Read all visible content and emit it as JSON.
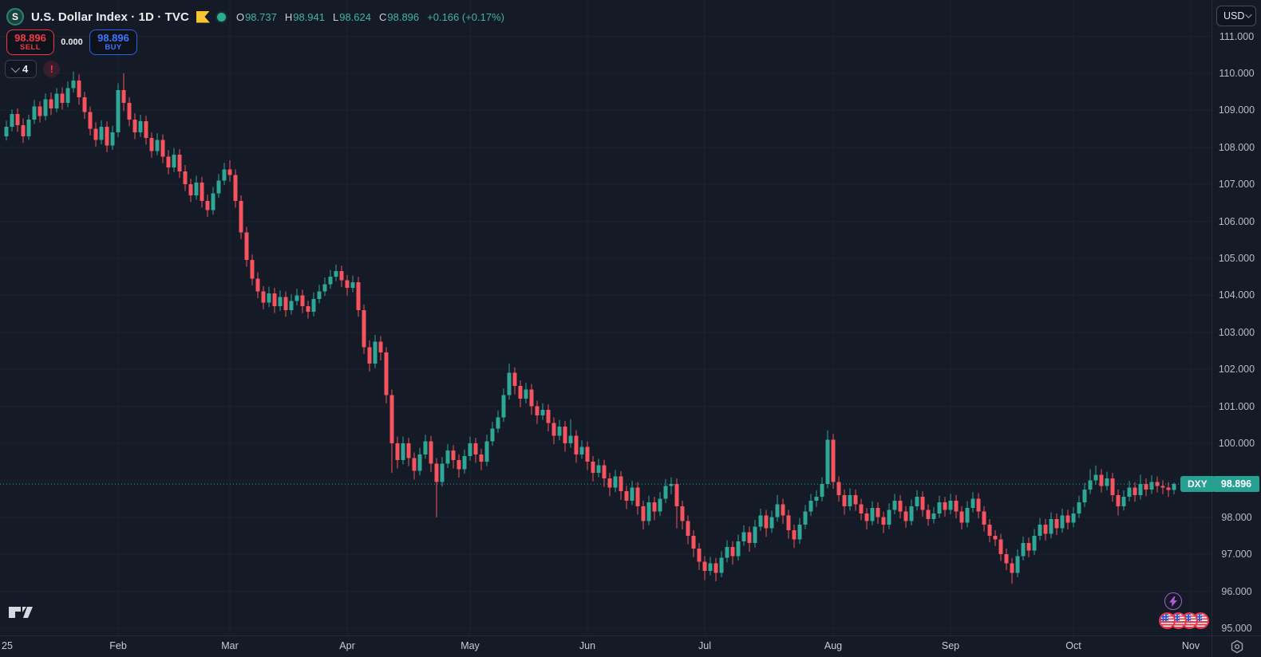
{
  "header": {
    "symbol_badge": "S",
    "title": "U.S. Dollar Index",
    "separator": "·",
    "timeframe": "1D",
    "exchange": "TVC",
    "ohlc": {
      "o_label": "O",
      "o": "98.737",
      "h_label": "H",
      "h": "98.941",
      "l_label": "L",
      "l": "98.624",
      "c_label": "C",
      "c": "98.896",
      "change": "+0.166 (+0.17%)"
    }
  },
  "trade_panel": {
    "sell_price": "98.896",
    "sell_label": "SELL",
    "spread": "0.000",
    "buy_price": "98.896",
    "buy_label": "BUY"
  },
  "toolbar": {
    "collapse_count": "4",
    "warning": "!"
  },
  "price_axis": {
    "currency": "USD",
    "symbol_tag": "DXY",
    "last_price": "98.896",
    "ticks": [
      "111.000",
      "110.000",
      "109.000",
      "108.000",
      "107.000",
      "106.000",
      "105.000",
      "104.000",
      "103.000",
      "102.000",
      "101.000",
      "100.000",
      "99.000",
      "98.000",
      "97.000",
      "96.000",
      "95.000"
    ]
  },
  "colors": {
    "up": "#2ea796",
    "down": "#f5545f",
    "label_teal": "#26a091",
    "grid": "rgba(170,180,200,0.05)",
    "dotted_line": "#2ea796"
  },
  "chart_data": {
    "type": "candlestick",
    "title": "U.S. Dollar Index (DXY) · 1D · TVC",
    "symbol": "DXY",
    "timeframe": "1D",
    "ylim": [
      95,
      111
    ],
    "last_close": 98.896,
    "months": [
      {
        "label": "25",
        "i": 0
      },
      {
        "label": "Feb",
        "i": 20
      },
      {
        "label": "Mar",
        "i": 40
      },
      {
        "label": "Apr",
        "i": 61
      },
      {
        "label": "May",
        "i": 83
      },
      {
        "label": "Jun",
        "i": 104
      },
      {
        "label": "Jul",
        "i": 125
      },
      {
        "label": "Aug",
        "i": 148
      },
      {
        "label": "Sep",
        "i": 169
      },
      {
        "label": "Oct",
        "i": 191
      },
      {
        "label": "Nov",
        "i": 212
      }
    ],
    "candles": [
      [
        108.3,
        108.72,
        108.18,
        108.55
      ],
      [
        108.55,
        109.02,
        108.43,
        108.9
      ],
      [
        108.9,
        109.05,
        108.42,
        108.6
      ],
      [
        108.6,
        108.78,
        108.12,
        108.3
      ],
      [
        108.3,
        108.88,
        108.2,
        108.75
      ],
      [
        108.75,
        109.28,
        108.63,
        109.1
      ],
      [
        109.1,
        109.24,
        108.67,
        108.85
      ],
      [
        108.85,
        109.45,
        108.73,
        109.3
      ],
      [
        109.3,
        109.48,
        108.87,
        109.05
      ],
      [
        109.05,
        109.6,
        108.95,
        109.45
      ],
      [
        109.45,
        109.62,
        109.02,
        109.2
      ],
      [
        109.2,
        109.78,
        109.08,
        109.6
      ],
      [
        109.6,
        110.05,
        109.48,
        109.8
      ],
      [
        109.8,
        109.97,
        109.15,
        109.35
      ],
      [
        109.35,
        109.5,
        108.77,
        108.95
      ],
      [
        108.95,
        109.1,
        108.32,
        108.5
      ],
      [
        108.5,
        108.68,
        108.02,
        108.2
      ],
      [
        108.2,
        108.73,
        108.08,
        108.55
      ],
      [
        108.55,
        108.7,
        107.87,
        108.05
      ],
      [
        108.05,
        108.58,
        107.93,
        108.4
      ],
      [
        108.4,
        109.73,
        108.28,
        109.55
      ],
      [
        109.55,
        110.0,
        108.98,
        109.2
      ],
      [
        109.2,
        109.35,
        108.57,
        108.75
      ],
      [
        108.75,
        108.92,
        108.22,
        108.4
      ],
      [
        108.4,
        108.88,
        108.28,
        108.7
      ],
      [
        108.7,
        108.85,
        108.07,
        108.25
      ],
      [
        108.25,
        108.4,
        107.72,
        107.9
      ],
      [
        107.9,
        108.38,
        107.78,
        108.2
      ],
      [
        108.2,
        108.35,
        107.57,
        107.75
      ],
      [
        107.75,
        107.92,
        107.27,
        107.45
      ],
      [
        107.45,
        107.98,
        107.33,
        107.8
      ],
      [
        107.8,
        107.95,
        107.17,
        107.35
      ],
      [
        107.35,
        107.52,
        106.82,
        107.0
      ],
      [
        107.0,
        107.15,
        106.52,
        106.7
      ],
      [
        106.7,
        107.23,
        106.58,
        107.05
      ],
      [
        107.05,
        107.2,
        106.37,
        106.55
      ],
      [
        106.55,
        106.72,
        106.12,
        106.3
      ],
      [
        106.3,
        106.93,
        106.18,
        106.75
      ],
      [
        106.75,
        107.28,
        106.63,
        107.1
      ],
      [
        107.1,
        107.58,
        106.98,
        107.4
      ],
      [
        107.4,
        107.65,
        107.07,
        107.25
      ],
      [
        107.25,
        107.4,
        106.37,
        106.55
      ],
      [
        106.55,
        106.7,
        105.52,
        105.7
      ],
      [
        105.7,
        105.85,
        104.77,
        104.95
      ],
      [
        104.95,
        105.1,
        104.27,
        104.45
      ],
      [
        104.45,
        104.62,
        103.92,
        104.1
      ],
      [
        104.1,
        104.25,
        103.62,
        103.8
      ],
      [
        103.8,
        104.23,
        103.68,
        104.05
      ],
      [
        104.05,
        104.2,
        103.52,
        103.7
      ],
      [
        103.7,
        104.13,
        103.58,
        103.95
      ],
      [
        103.95,
        104.1,
        103.42,
        103.6
      ],
      [
        103.6,
        104.03,
        103.48,
        103.85
      ],
      [
        103.85,
        104.18,
        103.73,
        104.0
      ],
      [
        104.0,
        104.15,
        103.52,
        103.7
      ],
      [
        103.7,
        103.85,
        103.37,
        103.55
      ],
      [
        103.55,
        104.08,
        103.43,
        103.9
      ],
      [
        103.9,
        104.28,
        103.78,
        104.1
      ],
      [
        104.1,
        104.48,
        103.98,
        104.3
      ],
      [
        104.3,
        104.68,
        104.18,
        104.5
      ],
      [
        104.5,
        104.83,
        104.38,
        104.65
      ],
      [
        104.65,
        104.8,
        104.22,
        104.4
      ],
      [
        104.4,
        104.55,
        103.99,
        104.2
      ],
      [
        104.2,
        104.53,
        104.08,
        104.35
      ],
      [
        104.35,
        104.5,
        103.42,
        103.6
      ],
      [
        103.6,
        103.75,
        102.42,
        102.6
      ],
      [
        102.6,
        102.78,
        101.94,
        102.15
      ],
      [
        102.15,
        102.93,
        102.03,
        102.75
      ],
      [
        102.75,
        102.9,
        102.24,
        102.45
      ],
      [
        102.45,
        102.6,
        101.08,
        101.3
      ],
      [
        101.3,
        101.45,
        99.2,
        100.0
      ],
      [
        100.0,
        100.18,
        99.32,
        99.55
      ],
      [
        99.55,
        100.18,
        99.43,
        100.0
      ],
      [
        100.0,
        100.15,
        99.38,
        99.6
      ],
      [
        99.6,
        99.75,
        99.02,
        99.25
      ],
      [
        99.25,
        99.88,
        99.13,
        99.7
      ],
      [
        99.7,
        100.23,
        99.58,
        100.05
      ],
      [
        100.05,
        100.2,
        99.22,
        99.45
      ],
      [
        99.45,
        99.6,
        98.0,
        98.95
      ],
      [
        98.95,
        99.63,
        98.83,
        99.45
      ],
      [
        99.45,
        99.98,
        99.33,
        99.8
      ],
      [
        99.8,
        99.95,
        99.32,
        99.55
      ],
      [
        99.55,
        99.7,
        99.07,
        99.3
      ],
      [
        99.3,
        99.83,
        99.18,
        99.65
      ],
      [
        99.65,
        100.18,
        99.53,
        100.0
      ],
      [
        100.0,
        100.15,
        99.47,
        99.7
      ],
      [
        99.7,
        99.85,
        99.27,
        99.5
      ],
      [
        99.5,
        100.23,
        99.38,
        100.05
      ],
      [
        100.05,
        100.58,
        99.93,
        100.4
      ],
      [
        100.4,
        100.88,
        100.28,
        100.7
      ],
      [
        100.7,
        101.48,
        100.58,
        101.3
      ],
      [
        101.3,
        102.15,
        101.18,
        101.9
      ],
      [
        101.9,
        102.05,
        101.32,
        101.55
      ],
      [
        101.55,
        101.7,
        100.97,
        101.2
      ],
      [
        101.2,
        101.63,
        101.08,
        101.45
      ],
      [
        101.45,
        101.6,
        100.77,
        101.0
      ],
      [
        101.0,
        101.15,
        100.52,
        100.75
      ],
      [
        100.75,
        101.08,
        100.63,
        100.9
      ],
      [
        100.9,
        101.05,
        100.32,
        100.55
      ],
      [
        100.55,
        100.7,
        99.97,
        100.2
      ],
      [
        100.2,
        100.63,
        100.08,
        100.45
      ],
      [
        100.45,
        100.6,
        99.77,
        100.0
      ],
      [
        100.0,
        100.65,
        99.88,
        100.2
      ],
      [
        100.2,
        100.35,
        99.47,
        99.7
      ],
      [
        99.7,
        100.08,
        99.58,
        99.9
      ],
      [
        99.9,
        100.05,
        99.27,
        99.5
      ],
      [
        99.5,
        99.65,
        98.97,
        99.2
      ],
      [
        99.2,
        99.58,
        99.08,
        99.4
      ],
      [
        99.4,
        99.55,
        98.82,
        99.05
      ],
      [
        99.05,
        99.2,
        98.57,
        98.8
      ],
      [
        98.8,
        99.28,
        98.68,
        99.1
      ],
      [
        99.1,
        99.25,
        98.47,
        98.7
      ],
      [
        98.7,
        98.85,
        98.22,
        98.45
      ],
      [
        98.45,
        98.98,
        98.33,
        98.8
      ],
      [
        98.8,
        98.95,
        98.07,
        98.3
      ],
      [
        98.3,
        98.45,
        97.67,
        97.9
      ],
      [
        97.9,
        98.58,
        97.78,
        98.4
      ],
      [
        98.4,
        98.55,
        97.92,
        98.15
      ],
      [
        98.15,
        98.68,
        98.03,
        98.5
      ],
      [
        98.5,
        99.03,
        98.38,
        98.85
      ],
      [
        98.85,
        99.08,
        98.62,
        98.9
      ],
      [
        98.9,
        99.05,
        97.7,
        98.3
      ],
      [
        98.3,
        98.45,
        97.67,
        97.9
      ],
      [
        97.9,
        98.05,
        97.27,
        97.5
      ],
      [
        97.5,
        97.65,
        96.92,
        97.15
      ],
      [
        97.15,
        97.3,
        96.57,
        96.8
      ],
      [
        96.8,
        96.95,
        96.3,
        96.55
      ],
      [
        96.55,
        96.93,
        96.43,
        96.75
      ],
      [
        96.75,
        96.9,
        96.27,
        96.5
      ],
      [
        96.5,
        97.08,
        96.38,
        96.9
      ],
      [
        96.9,
        97.38,
        96.78,
        97.2
      ],
      [
        97.2,
        97.35,
        96.72,
        96.95
      ],
      [
        96.95,
        97.53,
        96.83,
        97.35
      ],
      [
        97.35,
        97.78,
        97.23,
        97.6
      ],
      [
        97.6,
        97.75,
        97.07,
        97.3
      ],
      [
        97.3,
        97.93,
        97.18,
        97.75
      ],
      [
        97.75,
        98.23,
        97.63,
        98.05
      ],
      [
        98.05,
        98.2,
        97.47,
        97.7
      ],
      [
        97.7,
        98.18,
        97.58,
        98.0
      ],
      [
        98.0,
        98.6,
        97.88,
        98.35
      ],
      [
        98.35,
        98.5,
        97.82,
        98.05
      ],
      [
        98.05,
        98.2,
        97.42,
        97.65
      ],
      [
        97.65,
        97.8,
        97.17,
        97.4
      ],
      [
        97.4,
        97.98,
        97.28,
        97.8
      ],
      [
        97.8,
        98.33,
        97.68,
        98.15
      ],
      [
        98.15,
        98.63,
        98.03,
        98.45
      ],
      [
        98.45,
        98.73,
        98.28,
        98.55
      ],
      [
        98.55,
        99.08,
        98.43,
        98.9
      ],
      [
        98.9,
        100.35,
        98.78,
        100.1
      ],
      [
        100.1,
        100.25,
        98.77,
        98.95
      ],
      [
        98.95,
        99.1,
        98.42,
        98.6
      ],
      [
        98.6,
        98.75,
        98.07,
        98.3
      ],
      [
        98.3,
        98.78,
        98.18,
        98.6
      ],
      [
        98.6,
        98.75,
        98.17,
        98.35
      ],
      [
        98.35,
        98.5,
        97.92,
        98.1
      ],
      [
        98.1,
        98.25,
        97.67,
        97.9
      ],
      [
        97.9,
        98.43,
        97.78,
        98.25
      ],
      [
        98.25,
        98.4,
        97.82,
        98.0
      ],
      [
        98.0,
        98.15,
        97.57,
        97.8
      ],
      [
        97.8,
        98.38,
        97.68,
        98.2
      ],
      [
        98.2,
        98.63,
        98.08,
        98.45
      ],
      [
        98.45,
        98.6,
        97.97,
        98.15
      ],
      [
        98.15,
        98.3,
        97.72,
        97.9
      ],
      [
        97.9,
        98.48,
        97.78,
        98.3
      ],
      [
        98.3,
        98.73,
        98.18,
        98.55
      ],
      [
        98.55,
        98.7,
        98.02,
        98.2
      ],
      [
        98.2,
        98.35,
        97.77,
        97.95
      ],
      [
        97.95,
        98.28,
        97.83,
        98.1
      ],
      [
        98.1,
        98.58,
        97.98,
        98.4
      ],
      [
        98.4,
        98.55,
        98.02,
        98.2
      ],
      [
        98.2,
        98.63,
        98.08,
        98.45
      ],
      [
        98.45,
        98.6,
        97.97,
        98.15
      ],
      [
        98.15,
        98.3,
        97.67,
        97.85
      ],
      [
        97.85,
        98.43,
        97.73,
        98.25
      ],
      [
        98.25,
        98.68,
        98.13,
        98.5
      ],
      [
        98.5,
        98.65,
        97.97,
        98.15
      ],
      [
        98.15,
        98.3,
        97.62,
        97.8
      ],
      [
        97.8,
        97.95,
        97.32,
        97.5
      ],
      [
        97.5,
        97.65,
        97.22,
        97.4
      ],
      [
        97.4,
        97.55,
        96.82,
        97.0
      ],
      [
        97.0,
        97.15,
        96.57,
        96.75
      ],
      [
        96.75,
        96.9,
        96.2,
        96.5
      ],
      [
        96.5,
        97.13,
        96.38,
        96.95
      ],
      [
        96.95,
        97.48,
        96.83,
        97.3
      ],
      [
        97.3,
        97.45,
        96.92,
        97.1
      ],
      [
        97.1,
        97.68,
        96.98,
        97.5
      ],
      [
        97.5,
        97.98,
        97.38,
        97.8
      ],
      [
        97.8,
        97.95,
        97.37,
        97.55
      ],
      [
        97.55,
        98.13,
        97.43,
        97.95
      ],
      [
        97.95,
        98.1,
        97.52,
        97.7
      ],
      [
        97.7,
        98.23,
        97.58,
        98.05
      ],
      [
        98.05,
        98.2,
        97.67,
        97.85
      ],
      [
        97.85,
        98.28,
        97.73,
        98.1
      ],
      [
        98.1,
        98.58,
        97.98,
        98.4
      ],
      [
        98.4,
        98.93,
        98.28,
        98.75
      ],
      [
        98.75,
        99.3,
        98.63,
        99.0
      ],
      [
        99.0,
        99.4,
        98.88,
        99.15
      ],
      [
        99.15,
        99.3,
        98.67,
        98.85
      ],
      [
        98.85,
        99.23,
        98.73,
        99.05
      ],
      [
        99.05,
        99.2,
        98.42,
        98.6
      ],
      [
        98.6,
        98.75,
        98.05,
        98.3
      ],
      [
        98.3,
        98.73,
        98.18,
        98.55
      ],
      [
        98.55,
        98.98,
        98.43,
        98.8
      ],
      [
        98.8,
        98.95,
        98.42,
        98.6
      ],
      [
        98.6,
        99.15,
        98.48,
        98.9
      ],
      [
        98.9,
        99.05,
        98.57,
        98.75
      ],
      [
        98.75,
        99.13,
        98.63,
        98.95
      ],
      [
        98.95,
        99.1,
        98.67,
        98.85
      ],
      [
        98.85,
        99.0,
        98.62,
        98.8
      ],
      [
        98.8,
        98.95,
        98.55,
        98.74
      ],
      [
        98.74,
        98.94,
        98.62,
        98.9
      ]
    ]
  }
}
